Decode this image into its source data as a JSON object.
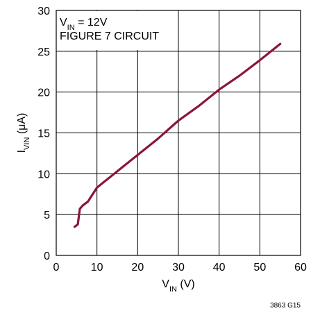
{
  "chart_data": {
    "type": "line",
    "annotation_lines": [
      {
        "main": "V",
        "sub": "IN",
        "rest": " = 12V"
      },
      {
        "main": "FIGURE 7 CIRCUIT",
        "sub": "",
        "rest": ""
      }
    ],
    "xlabel": {
      "main": "V",
      "sub": "IN",
      "rest": " (V)"
    },
    "ylabel": {
      "main": "I",
      "sub": "VIN",
      "rest": " (μA)"
    },
    "xlim": [
      0,
      60
    ],
    "ylim": [
      0,
      30
    ],
    "x_ticks": [
      0,
      10,
      20,
      30,
      40,
      50,
      60
    ],
    "y_ticks": [
      0,
      5,
      10,
      15,
      20,
      25,
      30
    ],
    "grid": true,
    "series": [
      {
        "color": "#8b1538",
        "x": [
          4.5,
          5.3,
          5.8,
          6.5,
          7.8,
          10,
          15,
          20,
          25,
          30,
          35,
          40,
          45,
          50,
          55
        ],
        "y": [
          3.5,
          3.8,
          5.7,
          6.1,
          6.6,
          8.3,
          10.3,
          12.3,
          14.3,
          16.5,
          18.3,
          20.3,
          22.0,
          23.9,
          25.9
        ]
      }
    ],
    "figure_id": "3863 G15"
  }
}
